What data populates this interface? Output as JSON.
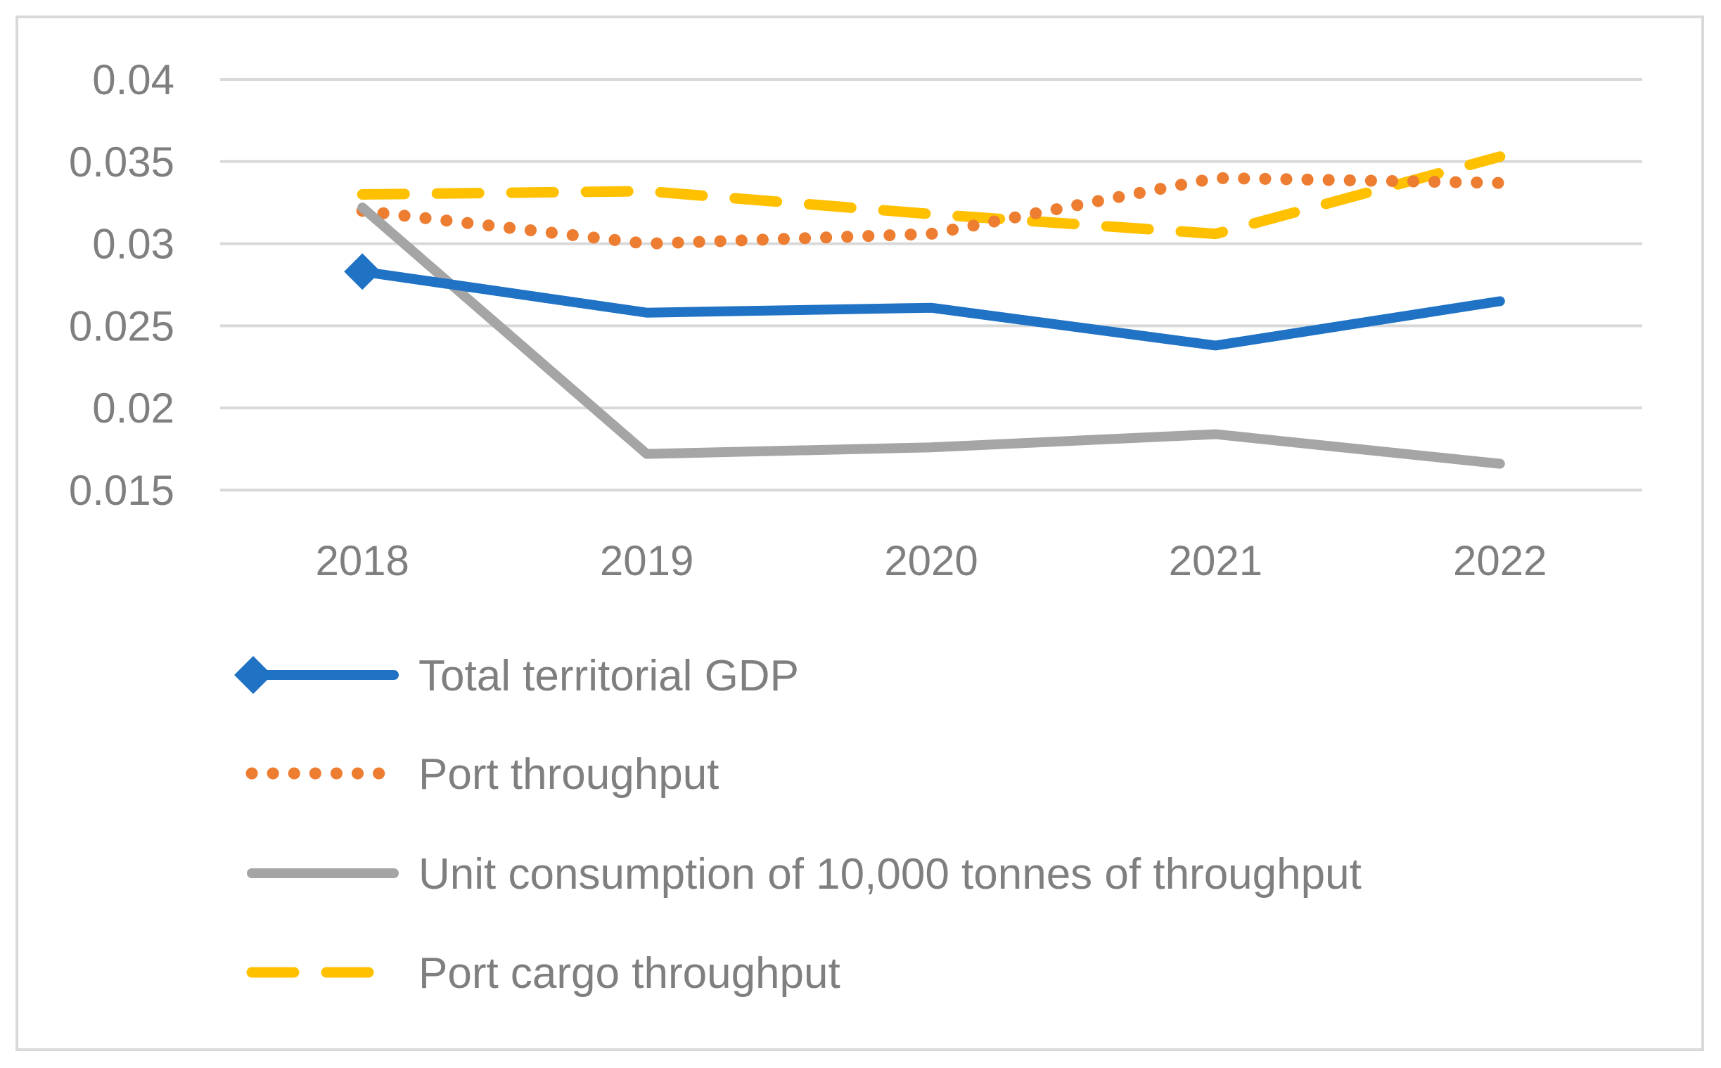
{
  "chart_data": {
    "type": "line",
    "title": "",
    "xlabel": "",
    "ylabel": "",
    "categories": [
      "2018",
      "2019",
      "2020",
      "2021",
      "2022"
    ],
    "y_ticks": [
      "0.04",
      "0.035",
      "0.03",
      "0.025",
      "0.02",
      "0.015"
    ],
    "ylim": [
      0.015,
      0.04
    ],
    "grid": true,
    "legend_position": "bottom",
    "series": [
      {
        "name": "Total territorial GDP",
        "values": [
          0.0283,
          0.0258,
          0.0261,
          0.0238,
          0.0265
        ],
        "color": "#1f72c4",
        "style": "solid",
        "marker": "diamond-first"
      },
      {
        "name": "Port throughput",
        "values": [
          0.032,
          0.03,
          0.0306,
          0.034,
          0.0337
        ],
        "color": "#ed7d31",
        "style": "dotted"
      },
      {
        "name": "Unit consumption of 10,000 tonnes of throughput",
        "values": [
          0.0322,
          0.0172,
          0.0176,
          0.0184,
          0.0166
        ],
        "color": "#a5a5a5",
        "style": "solid"
      },
      {
        "name": "Port cargo throughput",
        "values": [
          0.033,
          0.0332,
          0.0318,
          0.0306,
          0.0353
        ],
        "color": "#ffc000",
        "style": "dashed"
      }
    ]
  }
}
